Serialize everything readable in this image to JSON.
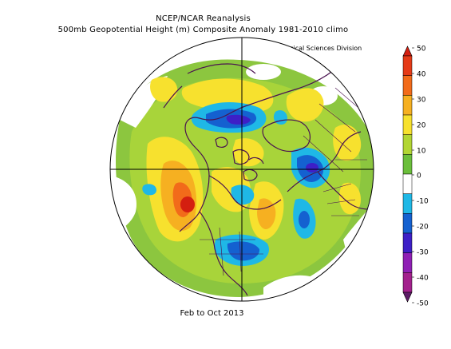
{
  "header": {
    "title": "NCEP/NCAR Reanalysis",
    "subtitle": "500mb Geopotential Height (m) Composite Anomaly 1981-2010 climo",
    "credit": "NOAA/ESRL Physical Sciences Division"
  },
  "footer": {
    "period": "Feb to Oct 2013"
  },
  "colorbar": {
    "levels": [
      {
        "label": "50",
        "color": "#e53a17"
      },
      {
        "label": "40",
        "color": "#f26b1a"
      },
      {
        "label": "30",
        "color": "#f6b021"
      },
      {
        "label": "20",
        "color": "#f7e12e"
      },
      {
        "label": "10",
        "color": "#b2d633"
      },
      {
        "label": "0",
        "color": "#ffffff"
      },
      {
        "label": "-10",
        "color": "#1fb8e6"
      },
      {
        "label": "-20",
        "color": "#1461d0"
      },
      {
        "label": "-30",
        "color": "#3d1fc7"
      },
      {
        "label": "-40",
        "color": "#8f1fb5"
      },
      {
        "label": "-50",
        "color": "#5c1a66"
      }
    ],
    "top_color": "#d41f10",
    "mid_colors": [
      "#e53a17",
      "#f26b1a",
      "#f6b021",
      "#f7e12e",
      "#b2d633",
      "#6bbf3b",
      "#ffffff",
      "#1fb8e6",
      "#1461d0",
      "#3d1fc7",
      "#8f1fb5",
      "#a3208d"
    ],
    "bottom_color": "#5c1a66"
  },
  "map": {
    "projection": "north-polar-stereographic",
    "ocean_color": "#ffffff",
    "coast_color": "#4a1250"
  }
}
